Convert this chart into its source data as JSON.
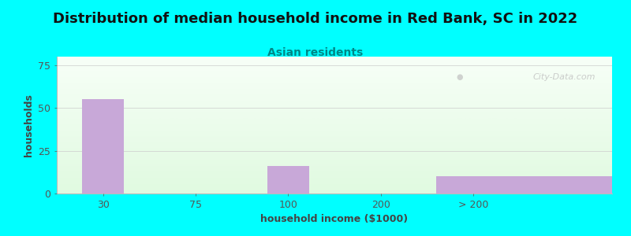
{
  "title": "Distribution of median household income in Red Bank, SC in 2022",
  "subtitle": "Asian residents",
  "xlabel": "household income ($1000)",
  "ylabel": "households",
  "bar_labels": [
    "30",
    "75",
    "100",
    "200",
    "> 200"
  ],
  "bar_heights": [
    55,
    0,
    16,
    0,
    10
  ],
  "bar_color": "#c8a8d8",
  "background_color": "#00ffff",
  "yticks": [
    0,
    25,
    50,
    75
  ],
  "ylim": [
    0,
    80
  ],
  "xlim": [
    -0.5,
    5.5
  ],
  "title_fontsize": 13,
  "subtitle_fontsize": 10,
  "axis_label_fontsize": 9,
  "tick_label_fontsize": 9,
  "watermark": "City-Data.com",
  "title_color": "#111111",
  "subtitle_color": "#008888",
  "axis_label_color": "#444444",
  "tick_color": "#555555",
  "bar_width": 0.45,
  "bar_positions": [
    0,
    1,
    2,
    3,
    4
  ],
  "last_bar_width": 1.5
}
